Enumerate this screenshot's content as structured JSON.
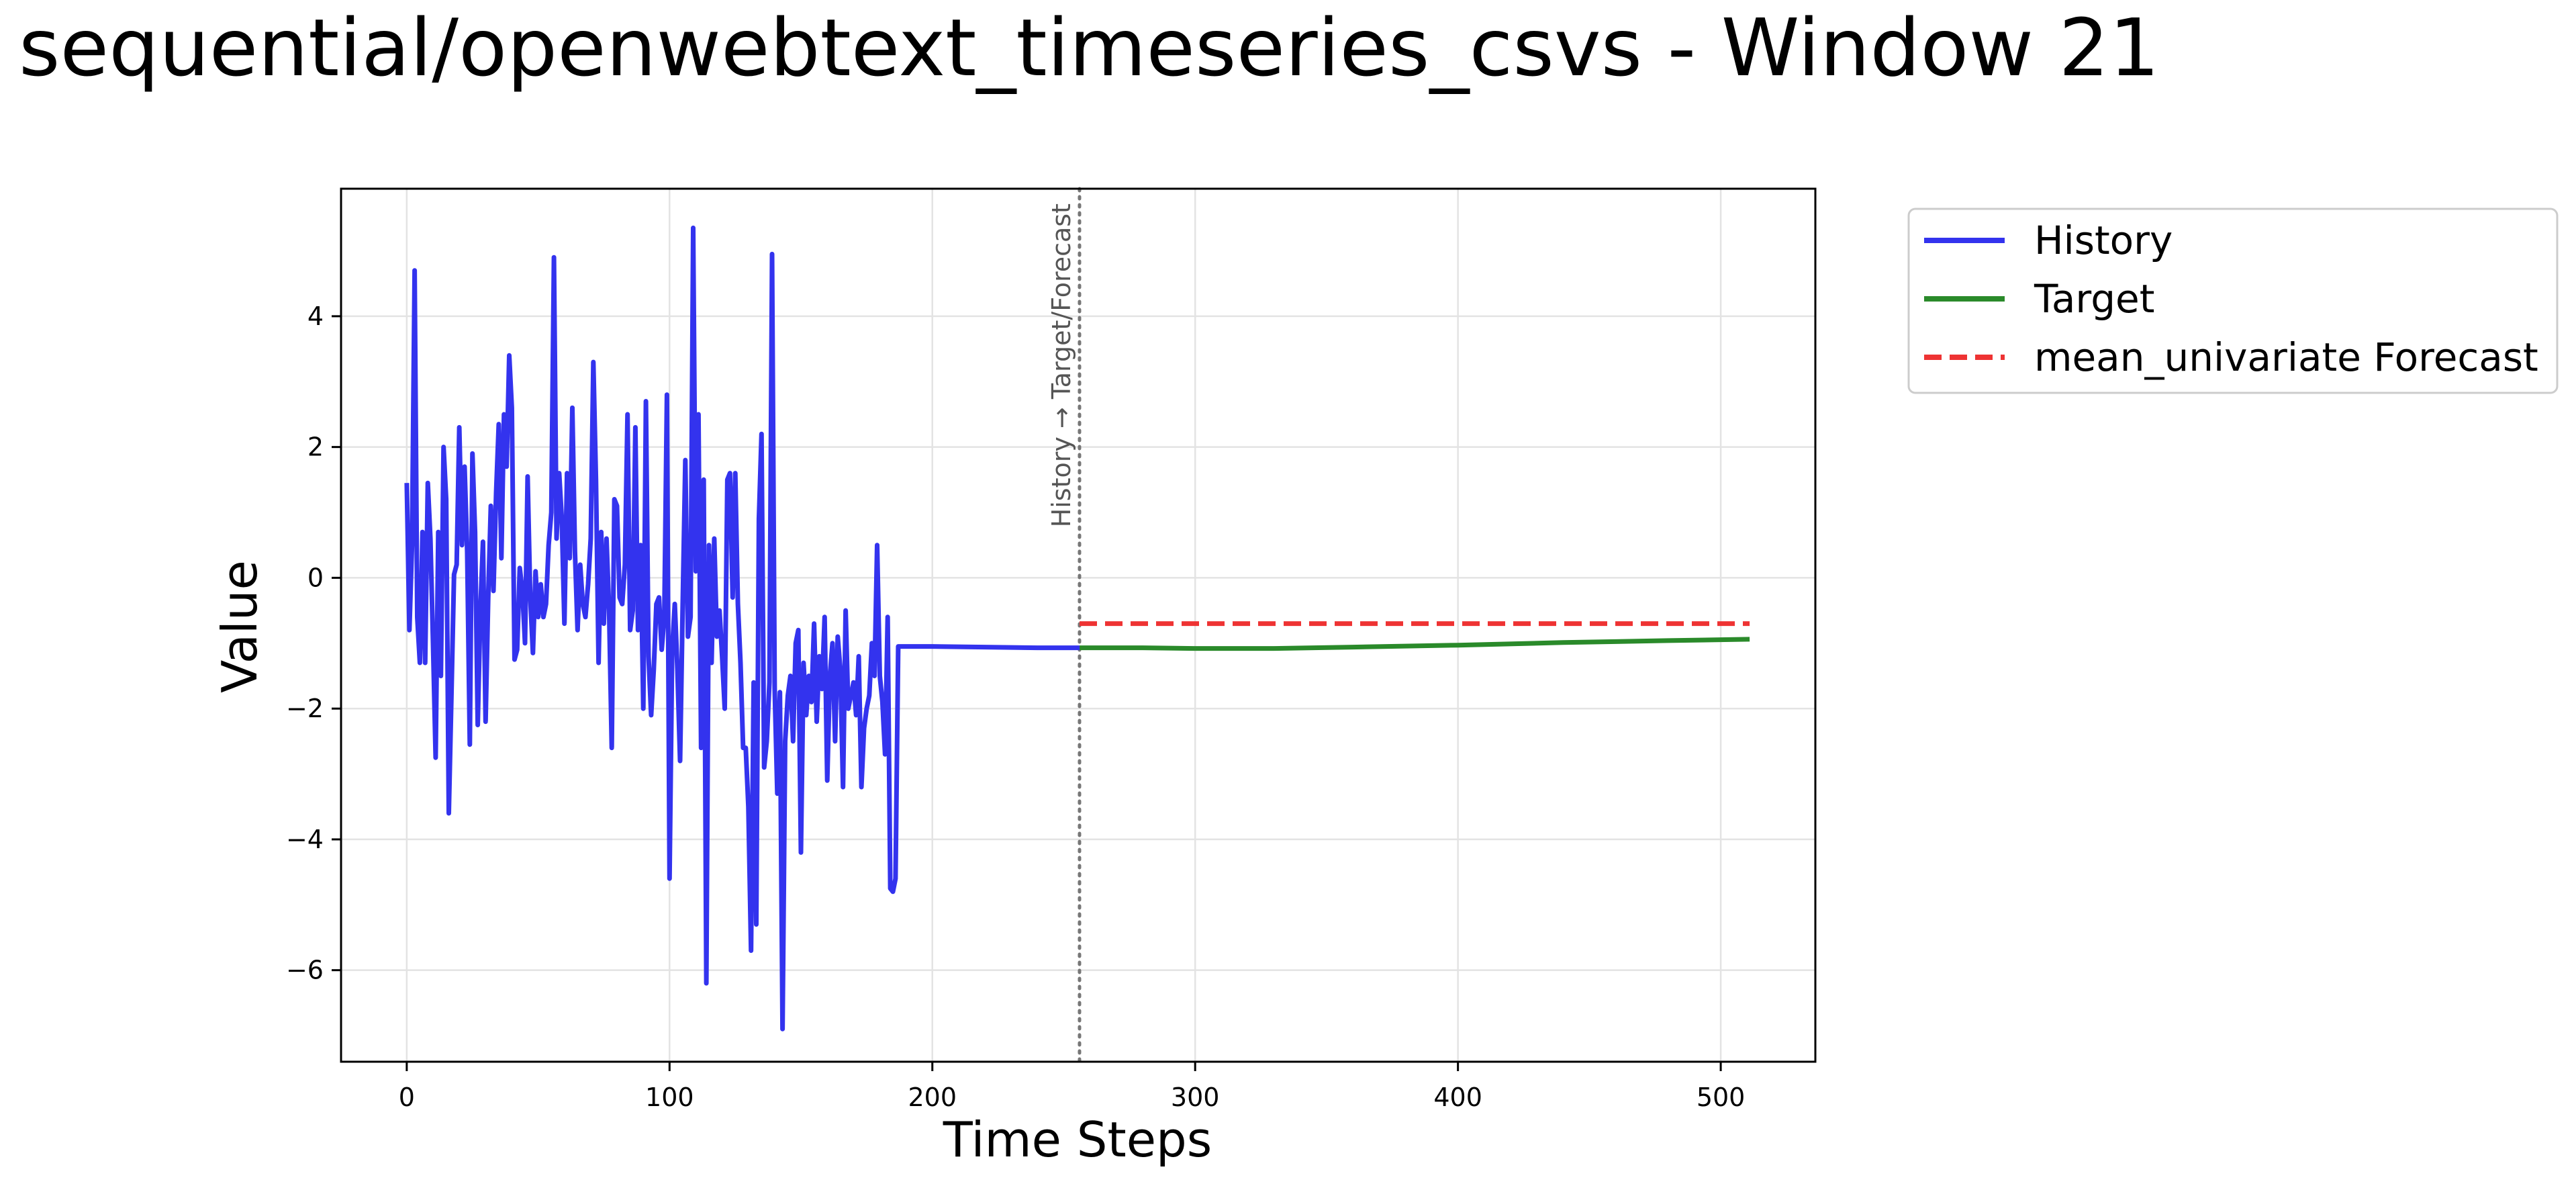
{
  "chart_data": {
    "type": "line",
    "title": "sequential/openwebtext_timeseries_csvs - Window 21",
    "xlabel": "Time Steps",
    "ylabel": "Value",
    "xlim": [
      -25,
      536
    ],
    "ylim": [
      -7.4,
      5.95
    ],
    "xticks": [
      0,
      100,
      200,
      300,
      400,
      500
    ],
    "yticks": [
      -6,
      -4,
      -2,
      0,
      2,
      4
    ],
    "xtick_labels": [
      "0",
      "100",
      "200",
      "300",
      "400",
      "500"
    ],
    "ytick_labels": [
      "−6",
      "−4",
      "−2",
      "0",
      "2",
      "4"
    ],
    "grid": true,
    "legend_position": "outside-top-right",
    "split_annotation": {
      "x": 256,
      "label": "History → Target/Forecast"
    },
    "series": [
      {
        "name": "History",
        "color": "#3333ee",
        "style": "solid",
        "points": [
          [
            0,
            1.45
          ],
          [
            1,
            -0.8
          ],
          [
            2,
            0.5
          ],
          [
            3,
            4.7
          ],
          [
            4,
            -0.6
          ],
          [
            5,
            -1.3
          ],
          [
            6,
            0.7
          ],
          [
            7,
            -1.3
          ],
          [
            8,
            1.45
          ],
          [
            9,
            0.6
          ],
          [
            10,
            -1.0
          ],
          [
            11,
            -2.75
          ],
          [
            12,
            0.7
          ],
          [
            13,
            -1.5
          ],
          [
            14,
            2.0
          ],
          [
            15,
            1.2
          ],
          [
            16,
            -3.6
          ],
          [
            17,
            -1.8
          ],
          [
            18,
            0.05
          ],
          [
            19,
            0.2
          ],
          [
            20,
            2.3
          ],
          [
            21,
            0.5
          ],
          [
            22,
            1.7
          ],
          [
            23,
            0.4
          ],
          [
            24,
            -2.55
          ],
          [
            25,
            1.9
          ],
          [
            26,
            0.7
          ],
          [
            27,
            -2.25
          ],
          [
            28,
            -0.5
          ],
          [
            29,
            0.55
          ],
          [
            30,
            -2.2
          ],
          [
            31,
            -0.3
          ],
          [
            32,
            1.1
          ],
          [
            33,
            -0.2
          ],
          [
            34,
            1.3
          ],
          [
            35,
            2.35
          ],
          [
            36,
            0.3
          ],
          [
            37,
            2.5
          ],
          [
            38,
            1.7
          ],
          [
            39,
            3.4
          ],
          [
            40,
            2.6
          ],
          [
            41,
            -1.25
          ],
          [
            42,
            -1.1
          ],
          [
            43,
            0.15
          ],
          [
            44,
            -0.2
          ],
          [
            45,
            -1.0
          ],
          [
            46,
            1.55
          ],
          [
            47,
            -0.3
          ],
          [
            48,
            -1.15
          ],
          [
            49,
            0.1
          ],
          [
            50,
            -0.6
          ],
          [
            51,
            -0.1
          ],
          [
            52,
            -0.6
          ],
          [
            53,
            -0.4
          ],
          [
            54,
            0.5
          ],
          [
            55,
            1.0
          ],
          [
            56,
            4.9
          ],
          [
            57,
            0.6
          ],
          [
            58,
            1.6
          ],
          [
            59,
            0.9
          ],
          [
            60,
            -0.7
          ],
          [
            61,
            1.6
          ],
          [
            62,
            0.3
          ],
          [
            63,
            2.6
          ],
          [
            64,
            0.4
          ],
          [
            65,
            -0.8
          ],
          [
            66,
            0.2
          ],
          [
            67,
            -0.4
          ],
          [
            68,
            -0.6
          ],
          [
            69,
            -0.1
          ],
          [
            70,
            0.6
          ],
          [
            71,
            3.3
          ],
          [
            72,
            1.5
          ],
          [
            73,
            -1.3
          ],
          [
            74,
            0.7
          ],
          [
            75,
            -0.7
          ],
          [
            76,
            0.6
          ],
          [
            77,
            -0.5
          ],
          [
            78,
            -2.6
          ],
          [
            79,
            1.2
          ],
          [
            80,
            1.1
          ],
          [
            81,
            -0.3
          ],
          [
            82,
            -0.4
          ],
          [
            83,
            0.2
          ],
          [
            84,
            2.5
          ],
          [
            85,
            -0.8
          ],
          [
            86,
            -0.5
          ],
          [
            87,
            2.3
          ],
          [
            88,
            -0.8
          ],
          [
            89,
            0.5
          ],
          [
            90,
            -2.0
          ],
          [
            91,
            2.7
          ],
          [
            92,
            -1.2
          ],
          [
            93,
            -2.1
          ],
          [
            94,
            -1.4
          ],
          [
            95,
            -0.4
          ],
          [
            96,
            -0.3
          ],
          [
            97,
            -1.1
          ],
          [
            98,
            -0.6
          ],
          [
            99,
            2.8
          ],
          [
            100,
            -4.6
          ],
          [
            101,
            -1.1
          ],
          [
            102,
            -0.4
          ],
          [
            103,
            -1.4
          ],
          [
            104,
            -2.8
          ],
          [
            105,
            -0.4
          ],
          [
            106,
            1.8
          ],
          [
            107,
            -0.9
          ],
          [
            108,
            -0.6
          ],
          [
            109,
            5.35
          ],
          [
            110,
            0.1
          ],
          [
            111,
            2.5
          ],
          [
            112,
            -2.6
          ],
          [
            113,
            1.5
          ],
          [
            114,
            -6.2
          ],
          [
            115,
            0.5
          ],
          [
            116,
            -1.3
          ],
          [
            117,
            0.6
          ],
          [
            118,
            -0.9
          ],
          [
            119,
            -0.5
          ],
          [
            120,
            -1.2
          ],
          [
            121,
            -2.0
          ],
          [
            122,
            1.5
          ],
          [
            123,
            1.6
          ],
          [
            124,
            -0.3
          ],
          [
            125,
            1.6
          ],
          [
            126,
            -0.4
          ],
          [
            127,
            -1.3
          ],
          [
            128,
            -2.6
          ],
          [
            129,
            -2.6
          ],
          [
            130,
            -3.5
          ],
          [
            131,
            -5.7
          ],
          [
            132,
            -1.6
          ],
          [
            133,
            -5.3
          ],
          [
            134,
            0.9
          ],
          [
            135,
            2.2
          ],
          [
            136,
            -2.9
          ],
          [
            137,
            -2.5
          ],
          [
            138,
            -1.6
          ],
          [
            139,
            4.95
          ],
          [
            140,
            -1.7
          ],
          [
            141,
            -3.3
          ],
          [
            142,
            -1.75
          ],
          [
            143,
            -6.9
          ],
          [
            144,
            -2.5
          ],
          [
            145,
            -1.8
          ],
          [
            146,
            -1.5
          ],
          [
            147,
            -2.5
          ],
          [
            148,
            -1.0
          ],
          [
            149,
            -0.8
          ],
          [
            150,
            -4.2
          ],
          [
            151,
            -1.3
          ],
          [
            152,
            -2.1
          ],
          [
            153,
            -1.5
          ],
          [
            154,
            -1.9
          ],
          [
            155,
            -0.7
          ],
          [
            156,
            -2.2
          ],
          [
            157,
            -1.2
          ],
          [
            158,
            -1.7
          ],
          [
            159,
            -0.6
          ],
          [
            160,
            -3.1
          ],
          [
            161,
            -1.5
          ],
          [
            162,
            -1.0
          ],
          [
            163,
            -2.5
          ],
          [
            164,
            -0.9
          ],
          [
            165,
            -1.4
          ],
          [
            166,
            -3.2
          ],
          [
            167,
            -0.5
          ],
          [
            168,
            -2.0
          ],
          [
            169,
            -1.8
          ],
          [
            170,
            -1.6
          ],
          [
            171,
            -2.1
          ],
          [
            172,
            -1.2
          ],
          [
            173,
            -3.2
          ],
          [
            174,
            -2.3
          ],
          [
            175,
            -2.0
          ],
          [
            176,
            -1.8
          ],
          [
            177,
            -1.0
          ],
          [
            178,
            -1.5
          ],
          [
            179,
            0.5
          ],
          [
            180,
            -1.5
          ],
          [
            181,
            -1.9
          ],
          [
            182,
            -2.7
          ],
          [
            183,
            -0.6
          ],
          [
            184,
            -4.75
          ],
          [
            185,
            -4.8
          ],
          [
            186,
            -4.6
          ],
          [
            187,
            -1.05
          ],
          [
            200,
            -1.05
          ],
          [
            220,
            -1.06
          ],
          [
            240,
            -1.07
          ],
          [
            256,
            -1.07
          ]
        ]
      },
      {
        "name": "Target",
        "color": "#2a8a2a",
        "style": "solid",
        "points": [
          [
            256,
            -1.07
          ],
          [
            280,
            -1.07
          ],
          [
            300,
            -1.08
          ],
          [
            330,
            -1.08
          ],
          [
            360,
            -1.06
          ],
          [
            400,
            -1.03
          ],
          [
            440,
            -0.99
          ],
          [
            480,
            -0.96
          ],
          [
            511,
            -0.94
          ]
        ]
      },
      {
        "name": "mean_univariate Forecast",
        "color": "#ee3333",
        "style": "dashed",
        "points": [
          [
            256,
            -0.7
          ],
          [
            511,
            -0.7
          ]
        ]
      }
    ]
  }
}
